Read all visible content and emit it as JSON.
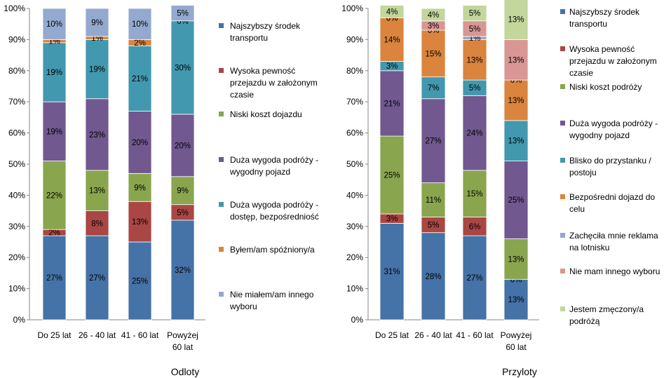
{
  "chart_data": [
    {
      "type": "bar",
      "stacked": true,
      "title": "Odloty",
      "categories": [
        [
          "Do 25 lat"
        ],
        [
          "26 - 40 lat"
        ],
        [
          "41 - 60 lat"
        ],
        [
          "Powyżej",
          "60 lat"
        ]
      ],
      "ylim": [
        0,
        100
      ],
      "yticks": [
        "0%",
        "10%",
        "20%",
        "30%",
        "40%",
        "50%",
        "60%",
        "70%",
        "80%",
        "90%",
        "100%"
      ],
      "series": [
        {
          "name": "Najszybszy środek transportu",
          "legend_lines": [
            "Najszybszy środek",
            "transportu"
          ],
          "color": "#4572A7",
          "values": [
            27,
            27,
            25,
            32
          ]
        },
        {
          "name": "Wysoka pewność przejazdu w założonym czasie",
          "legend_lines": [
            "Wysoka pewność",
            "przejazdu w założonym",
            "czasie"
          ],
          "color": "#AA4643",
          "values": [
            2,
            8,
            13,
            5
          ]
        },
        {
          "name": "Niski koszt dojazdu",
          "legend_lines": [
            "Niski koszt dojazdu"
          ],
          "color": "#89A54E",
          "values": [
            22,
            13,
            9,
            9
          ]
        },
        {
          "name": "Duża wygoda podróży - wygodny pojazd",
          "legend_lines": [
            "Duża wygoda podróży -",
            "wygodny pojazd"
          ],
          "color": "#71588F",
          "values": [
            19,
            23,
            20,
            20
          ]
        },
        {
          "name": "Duża wygoda podróży - dostęp, bezpośredniość",
          "legend_lines": [
            "Duża wygoda podróży -",
            "dostęp, bezpośredniość"
          ],
          "color": "#4198AF",
          "values": [
            19,
            19,
            21,
            30
          ]
        },
        {
          "name": "Byłem/am spóźniony/a",
          "legend_lines": [
            "Byłem/am spóźniony/a"
          ],
          "color": "#DB843D",
          "values": [
            1,
            1,
            2,
            0
          ]
        },
        {
          "name": "Nie miałem/am innego wyboru",
          "legend_lines": [
            "Nie miałem/am innego",
            "wyboru"
          ],
          "color": "#93A9CF",
          "values": [
            10,
            9,
            10,
            5
          ]
        }
      ]
    },
    {
      "type": "bar",
      "stacked": true,
      "title": "Przyloty",
      "categories": [
        [
          "Do 25 lat"
        ],
        [
          "26 - 40 lat"
        ],
        [
          "41 - 60 lat"
        ],
        [
          "Powyżej",
          "60 lat"
        ]
      ],
      "ylim": [
        0,
        100
      ],
      "yticks": [
        "0%",
        "10%",
        "20%",
        "30%",
        "40%",
        "50%",
        "60%",
        "70%",
        "80%",
        "90%",
        "100%"
      ],
      "series": [
        {
          "name": "Najszybszy środek transportu",
          "legend_lines": [
            "Najszybszy środek",
            "transportu"
          ],
          "color": "#4572A7",
          "values": [
            31,
            28,
            27,
            13
          ]
        },
        {
          "name": "Wysoka pewność przejazdu w założonym czasie",
          "legend_lines": [
            "Wysoka pewność",
            "przejazdu w założonym",
            "czasie"
          ],
          "color": "#AA4643",
          "values": [
            3,
            5,
            6,
            0
          ]
        },
        {
          "name": "Niski koszt podróży",
          "legend_lines": [
            "Niski koszt podróży"
          ],
          "color": "#89A54E",
          "values": [
            25,
            11,
            15,
            13
          ]
        },
        {
          "name": "Duża wygoda podróży - wygodny pojazd",
          "legend_lines": [
            "Duża wygoda podróży -",
            "wygodny pojazd"
          ],
          "color": "#71588F",
          "values": [
            21,
            27,
            24,
            25
          ]
        },
        {
          "name": "Blisko do przystanku / postoju",
          "legend_lines": [
            "Blisko do przystanku /",
            "postoju"
          ],
          "color": "#4198AF",
          "values": [
            3,
            7,
            5,
            13
          ]
        },
        {
          "name": "Bezpośredni dojazd do celu",
          "legend_lines": [
            "Bezpośredni dojazd do",
            "celu"
          ],
          "color": "#DB843D",
          "values": [
            14,
            15,
            13,
            13
          ]
        },
        {
          "name": "Zachęciła mnie reklama na lotnisku",
          "legend_lines": [
            "Zachęciła mnie reklama",
            "na lotnisku"
          ],
          "color": "#93A9CF",
          "values": [
            0,
            0,
            1,
            0
          ]
        },
        {
          "name": "Nie mam innego wyboru",
          "legend_lines": [
            "Nie mam innego  wyboru"
          ],
          "color": "#D99694",
          "values": [
            0,
            3,
            5,
            13
          ]
        },
        {
          "name": "Jestem zmęczony/a podróżą",
          "legend_lines": [
            "Jestem zmęczony/a",
            "podróżą"
          ],
          "color": "#C3D69B",
          "values": [
            4,
            4,
            5,
            13
          ]
        }
      ]
    }
  ]
}
